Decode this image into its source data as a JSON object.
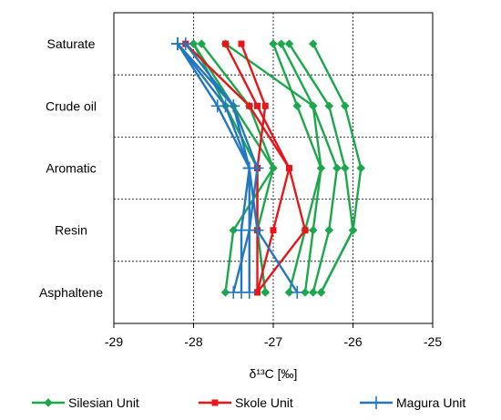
{
  "chart_data": {
    "type": "line",
    "xlabel": "δ¹³C [‰]",
    "xlim": [
      -29,
      -25
    ],
    "xticks": [
      -29,
      -28,
      -27,
      -26,
      -25
    ],
    "categories": [
      "Saturate",
      "Crude oil",
      "Aromatic",
      "Resin",
      "Asphaltene"
    ],
    "grid": "dashed",
    "legend_position": "bottom",
    "series": [
      {
        "name": "Silesian Unit",
        "color": "#1aa84a",
        "marker": "diamond",
        "lines": [
          [
            -28.0,
            -27.6,
            -27.2,
            -27.2,
            -27.1
          ],
          [
            -27.9,
            -27.3,
            -27.0,
            -27.2,
            -27.1
          ],
          [
            -27.0,
            -26.7,
            -26.4,
            -26.5,
            -26.6
          ],
          [
            -26.9,
            -26.5,
            -26.2,
            -26.3,
            -26.5
          ],
          [
            -26.8,
            -26.3,
            -26.1,
            -26.0,
            -26.4
          ],
          [
            -26.5,
            -26.1,
            -25.9,
            -26.0,
            -26.4
          ],
          [
            -28.0,
            -27.5,
            -27.0,
            -27.5,
            -27.6
          ],
          [
            -27.6,
            -26.5,
            -26.4,
            -26.6,
            -26.8
          ]
        ]
      },
      {
        "name": "Skole Unit",
        "color": "#e8151b",
        "marker": "square",
        "lines": [
          [
            -28.1,
            -27.3,
            -26.8,
            -27.0,
            -27.2
          ],
          [
            -27.6,
            -27.2,
            -26.8,
            -26.6,
            -27.2
          ],
          [
            -27.4,
            -27.1,
            -27.2,
            -27.2,
            -27.2
          ]
        ]
      },
      {
        "name": "Magura Unit",
        "color": "#2277c0",
        "marker": "plus",
        "lines": [
          [
            -28.2,
            -27.7,
            -27.3,
            -27.3,
            -27.5
          ],
          [
            -28.2,
            -27.6,
            -27.3,
            -27.4,
            -27.4
          ],
          [
            -28.2,
            -27.5,
            -27.2,
            -27.3,
            -27.3
          ],
          [
            -28.1,
            -27.5,
            -27.3,
            -27.2,
            -26.7
          ]
        ]
      }
    ]
  }
}
